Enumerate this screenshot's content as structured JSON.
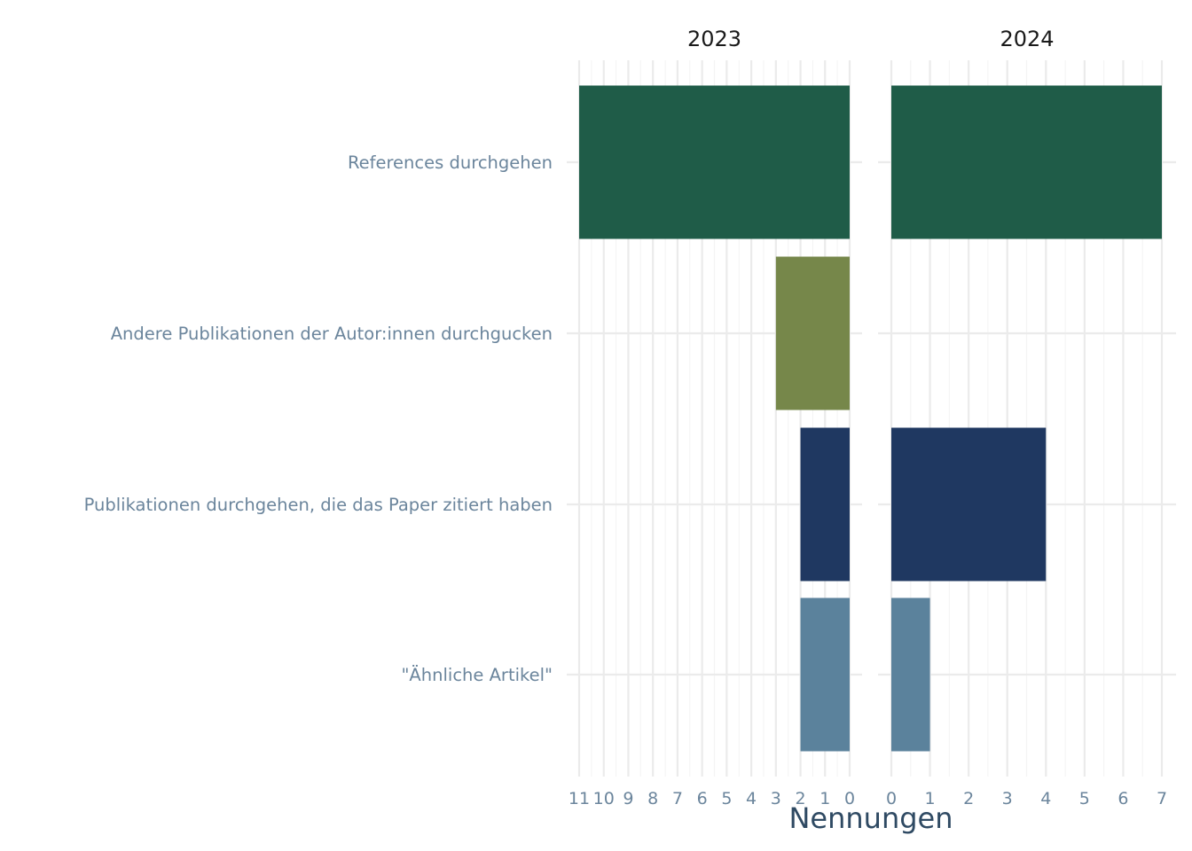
{
  "chart_data": {
    "type": "bar",
    "orientation": "horizontal",
    "xlabel": "Nennungen",
    "ylabel": "",
    "categories": [
      "References durchgehen",
      "Andere Publikationen der Autor:innen durchgucken",
      "Publikationen durchgehen, die das Paper zitiert haben",
      "\"Ähnliche Artikel\""
    ],
    "panels": [
      {
        "title": "2023",
        "direction": "reversed",
        "xlim": [
          0,
          11
        ],
        "ticks": [
          11,
          10,
          9,
          8,
          7,
          6,
          5,
          4,
          3,
          2,
          1,
          0
        ],
        "values": [
          11,
          3,
          2,
          2
        ]
      },
      {
        "title": "2024",
        "direction": "normal",
        "xlim": [
          0,
          7
        ],
        "ticks": [
          0,
          1,
          2,
          3,
          4,
          5,
          6,
          7
        ],
        "values": [
          7,
          0,
          4,
          1
        ]
      }
    ],
    "colors": [
      "#1f5c48",
      "#76874a",
      "#1f3861",
      "#5b829c"
    ],
    "grid": true,
    "legend": "none"
  }
}
